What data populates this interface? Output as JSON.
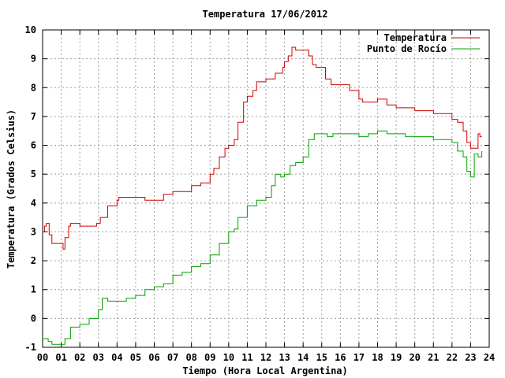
{
  "chart_data": {
    "type": "line",
    "title": "Temperatura 17/06/2012",
    "xlabel": "Tiempo (Hora Local Argentina)",
    "ylabel": "Temperatura (Grados Celsius)",
    "xlim": [
      0,
      24
    ],
    "ylim": [
      -1,
      10
    ],
    "x_ticks": [
      "00",
      "01",
      "02",
      "03",
      "04",
      "05",
      "06",
      "07",
      "08",
      "09",
      "10",
      "11",
      "12",
      "13",
      "14",
      "15",
      "16",
      "17",
      "18",
      "19",
      "20",
      "21",
      "22",
      "23",
      "24"
    ],
    "y_ticks": [
      "-1",
      "0",
      "1",
      "2",
      "3",
      "4",
      "5",
      "6",
      "7",
      "8",
      "9",
      "10"
    ],
    "grid": true,
    "legend_position": "top-right",
    "series": [
      {
        "name": "Temperatura",
        "color": "#cc0000",
        "x": [
          0,
          0.1,
          0.2,
          0.35,
          0.5,
          1.0,
          1.1,
          1.2,
          1.4,
          1.5,
          2.0,
          2.5,
          2.9,
          3.1,
          3.5,
          4.0,
          4.1,
          4.5,
          5.0,
          5.5,
          6.0,
          6.5,
          7.0,
          7.5,
          8.0,
          8.5,
          9.0,
          9.2,
          9.5,
          9.8,
          10.0,
          10.3,
          10.5,
          10.8,
          11.0,
          11.3,
          11.5,
          12.0,
          12.5,
          12.9,
          13.0,
          13.2,
          13.4,
          13.6,
          14.0,
          14.3,
          14.5,
          14.7,
          15.0,
          15.2,
          15.5,
          16.0,
          16.5,
          17.0,
          17.2,
          17.5,
          18.0,
          18.5,
          19.0,
          20.0,
          21.0,
          21.5,
          22.0,
          22.3,
          22.6,
          22.8,
          23.0,
          23.2,
          23.4,
          23.5,
          23.6
        ],
        "values": [
          3.0,
          3.2,
          3.3,
          2.9,
          2.6,
          2.6,
          2.4,
          2.8,
          3.2,
          3.3,
          3.2,
          3.2,
          3.3,
          3.5,
          3.9,
          4.1,
          4.2,
          4.2,
          4.2,
          4.1,
          4.1,
          4.3,
          4.4,
          4.4,
          4.6,
          4.7,
          5.0,
          5.2,
          5.6,
          5.9,
          6.0,
          6.2,
          6.8,
          7.5,
          7.7,
          7.9,
          8.2,
          8.3,
          8.5,
          8.7,
          8.9,
          9.1,
          9.4,
          9.3,
          9.3,
          9.1,
          8.8,
          8.7,
          8.7,
          8.3,
          8.1,
          8.1,
          7.9,
          7.6,
          7.5,
          7.5,
          7.6,
          7.4,
          7.3,
          7.2,
          7.1,
          7.1,
          6.9,
          6.8,
          6.5,
          6.1,
          5.9,
          5.9,
          6.4,
          6.3,
          6.3
        ]
      },
      {
        "name": "Punto de Rocío",
        "color": "#00a000",
        "x": [
          0,
          0.3,
          0.5,
          1.0,
          1.2,
          1.5,
          2.0,
          2.5,
          3.0,
          3.2,
          3.5,
          4.0,
          4.5,
          5.0,
          5.5,
          6.0,
          6.5,
          7.0,
          7.5,
          8.0,
          8.5,
          9.0,
          9.5,
          10.0,
          10.3,
          10.5,
          11.0,
          11.5,
          12.0,
          12.3,
          12.5,
          12.8,
          13.0,
          13.3,
          13.6,
          14.0,
          14.3,
          14.6,
          15.0,
          15.3,
          15.6,
          16.0,
          16.5,
          17.0,
          17.5,
          18.0,
          18.5,
          19.0,
          19.5,
          20.0,
          21.0,
          21.5,
          22.0,
          22.3,
          22.6,
          22.8,
          23.0,
          23.2,
          23.4,
          23.6
        ],
        "values": [
          -0.7,
          -0.8,
          -0.9,
          -0.9,
          -0.7,
          -0.3,
          -0.2,
          0.0,
          0.3,
          0.7,
          0.6,
          0.6,
          0.7,
          0.8,
          1.0,
          1.1,
          1.2,
          1.5,
          1.6,
          1.8,
          1.9,
          2.2,
          2.6,
          3.0,
          3.1,
          3.5,
          3.9,
          4.1,
          4.2,
          4.6,
          5.0,
          4.9,
          5.0,
          5.3,
          5.4,
          5.6,
          6.2,
          6.4,
          6.4,
          6.3,
          6.4,
          6.4,
          6.4,
          6.3,
          6.4,
          6.5,
          6.4,
          6.4,
          6.3,
          6.3,
          6.2,
          6.2,
          6.1,
          5.8,
          5.6,
          5.1,
          4.9,
          5.7,
          5.6,
          5.8
        ]
      }
    ]
  }
}
